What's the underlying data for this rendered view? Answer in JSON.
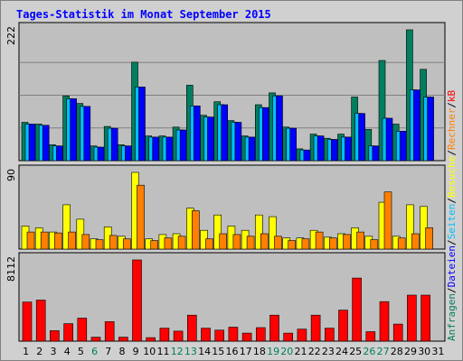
{
  "chart_data": {
    "type": "bar",
    "title": "Tages-Statistik im Monat September 2015",
    "days": [
      "1",
      "2",
      "3",
      "4",
      "5",
      "6",
      "7",
      "8",
      "9",
      "10",
      "11",
      "12",
      "13",
      "14",
      "15",
      "16",
      "17",
      "18",
      "19",
      "20",
      "21",
      "22",
      "23",
      "24",
      "25",
      "26",
      "27",
      "28",
      "29",
      "30",
      "31"
    ],
    "weekend_days": [
      "6",
      "12",
      "13",
      "19",
      "20",
      "26",
      "27"
    ],
    "panels": [
      {
        "ymax_label": "222",
        "ymax": 222,
        "series": [
          {
            "name": "Anfragen",
            "color": "#007f5f",
            "values": [
              65,
              62,
              27,
              110,
              97,
              25,
              58,
              27,
              167,
              42,
              42,
              57,
              128,
              77,
              100,
              68,
              42,
              95,
              115,
              57,
              20,
              45,
              38,
              45,
              108,
              53,
              170,
              62,
              222,
              155,
              0
            ]
          },
          {
            "name": "Seiten",
            "color": "#00bfff",
            "values": [
              62,
              60,
              25,
              105,
              92,
              23,
              55,
              25,
              125,
              40,
              40,
              52,
              93,
              74,
              95,
              65,
              40,
              90,
              110,
              55,
              18,
              42,
              36,
              40,
              80,
              25,
              72,
              50,
              120,
              108,
              0
            ]
          },
          {
            "name": "Dateien",
            "color": "#0000ff",
            "values": [
              62,
              60,
              25,
              105,
              92,
              23,
              55,
              25,
              125,
              40,
              40,
              52,
              93,
              74,
              95,
              65,
              40,
              90,
              110,
              55,
              18,
              42,
              36,
              40,
              80,
              25,
              72,
              50,
              120,
              108,
              0
            ]
          }
        ]
      },
      {
        "ymax_label": "90",
        "ymax": 90,
        "series": [
          {
            "name": "Besuche",
            "color": "#ffff00",
            "values": [
              27,
              25,
              20,
              52,
              35,
              12,
              26,
              15,
              90,
              12,
              17,
              18,
              48,
              22,
              40,
              27,
              22,
              40,
              38,
              13,
              13,
              22,
              14,
              18,
              25,
              15,
              55,
              15,
              52,
              50,
              0
            ]
          },
          {
            "name": "Rechner",
            "color": "#ff8000",
            "values": [
              20,
              20,
              19,
              20,
              17,
              11,
              16,
              12,
              75,
              10,
              13,
              15,
              45,
              12,
              18,
              17,
              15,
              18,
              15,
              10,
              12,
              20,
              13,
              17,
              20,
              11,
              67,
              13,
              18,
              25,
              0
            ]
          }
        ]
      },
      {
        "ymax_label": "8112",
        "ymax": 8112,
        "series": [
          {
            "name": "kB",
            "color": "#ff0000",
            "values": [
              3900,
              4100,
              1050,
              1750,
              2300,
              400,
              1950,
              400,
              8112,
              350,
              1300,
              1000,
              2600,
              1300,
              1100,
              1400,
              800,
              1350,
              2600,
              800,
              1200,
              2600,
              1300,
              3100,
              6300,
              950,
              3950,
              1700,
              4600,
              4600,
              0
            ]
          }
        ]
      }
    ],
    "side_labels": [
      {
        "text": "Anfragen",
        "color": "#007f5f"
      },
      {
        "text": "/",
        "color": "#000000"
      },
      {
        "text": "Dateien",
        "color": "#0000ff"
      },
      {
        "text": "/",
        "color": "#000000"
      },
      {
        "text": "Seiten",
        "color": "#00bfff"
      },
      {
        "text": "/",
        "color": "#000000"
      },
      {
        "text": "Besuche",
        "color": "#ffff00"
      },
      {
        "text": "/",
        "color": "#000000"
      },
      {
        "text": "Rechner",
        "color": "#ff8000"
      },
      {
        "text": "/",
        "color": "#000000"
      },
      {
        "text": "kB",
        "color": "#ff0000"
      }
    ],
    "colors": {
      "background": "#bfbfbf",
      "frame": "#d0d0d0",
      "title": "#0000ff",
      "weekend": "#007f5f",
      "weekday": "#000000",
      "grid": "#808080"
    }
  }
}
